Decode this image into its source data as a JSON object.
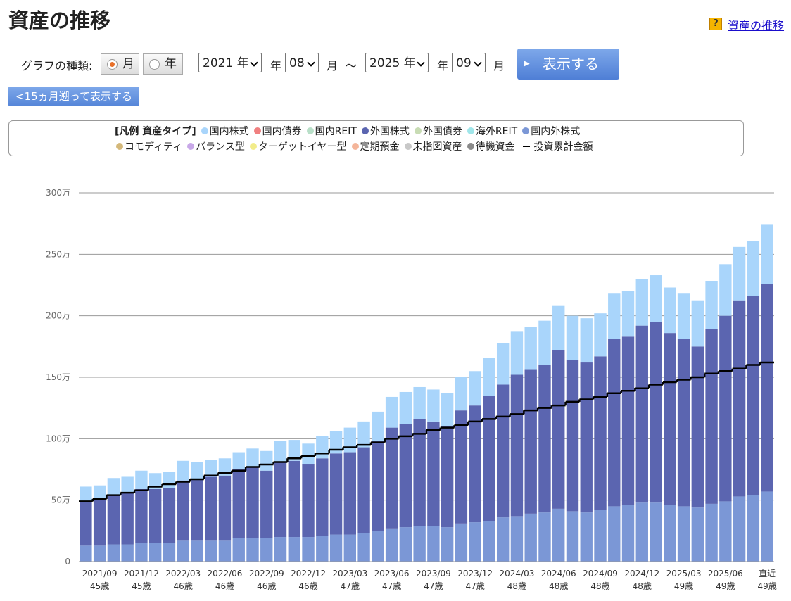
{
  "header": {
    "title": "資産の推移",
    "help_link": "資産の推移"
  },
  "controls": {
    "graph_type_label": "グラフの種類:",
    "radio_month": "月",
    "radio_year": "年",
    "from_year": "2021 年",
    "year_unit_1": "年",
    "from_month": "08",
    "month_unit_1": "月",
    "tilde": "～",
    "to_year": "2025 年",
    "year_unit_2": "年",
    "to_month": "09",
    "month_unit_2": "月",
    "show_button": "表示する",
    "back_button": "<15ヵ月遡って表示する"
  },
  "chart_data": {
    "type": "bar",
    "stacked": true,
    "legend_title": "[凡例 資産タイプ]",
    "categories": [
      null,
      "2021/09",
      null,
      null,
      "2021/12",
      null,
      null,
      "2022/03",
      null,
      null,
      "2022/06",
      null,
      null,
      "2022/09",
      null,
      null,
      "2022/12",
      null,
      null,
      "2023/03",
      null,
      null,
      "2023/06",
      null,
      null,
      "2023/09",
      null,
      null,
      "2023/12",
      null,
      null,
      "2024/03",
      null,
      null,
      "2024/06",
      null,
      null,
      "2024/09",
      null,
      null,
      "2024/12",
      null,
      null,
      "2025/03",
      null,
      null,
      "2025/06",
      null,
      null,
      "直近"
    ],
    "ages": [
      null,
      "45歳",
      null,
      null,
      "45歳",
      null,
      null,
      "46歳",
      null,
      null,
      "46歳",
      null,
      null,
      "46歳",
      null,
      null,
      "46歳",
      null,
      null,
      "47歳",
      null,
      null,
      "47歳",
      null,
      null,
      "47歳",
      null,
      null,
      "47歳",
      null,
      null,
      "48歳",
      null,
      null,
      "48歳",
      null,
      null,
      "48歳",
      null,
      null,
      "48歳",
      null,
      null,
      "49歳",
      null,
      null,
      "49歳",
      null,
      null,
      "49歳"
    ],
    "ylim": [
      0,
      300
    ],
    "yticks": [
      0,
      {
        "value": 50,
        "label": "50万"
      },
      {
        "value": 100,
        "label": "100万"
      },
      {
        "value": 150,
        "label": "150万"
      },
      {
        "value": 200,
        "label": "200万"
      },
      {
        "value": 250,
        "label": "250万"
      },
      {
        "value": 300,
        "label": "300万"
      }
    ],
    "grid": true,
    "series": [
      {
        "name": "国内株式",
        "color": "#a9d5fb",
        "values": [
          12,
          11,
          14,
          13,
          15,
          13,
          13,
          16,
          14,
          14,
          14,
          14,
          15,
          16,
          17,
          17,
          17,
          18,
          18,
          20,
          21,
          24,
          25,
          26,
          26,
          26,
          27,
          27,
          28,
          31,
          34,
          35,
          35,
          36,
          36,
          36,
          36,
          35,
          37,
          37,
          38,
          38,
          37,
          37,
          37,
          39,
          42,
          44,
          45,
          48
        ]
      },
      {
        "name": "国内債券",
        "color": "#f08080",
        "values": [
          0,
          0,
          0,
          0,
          0,
          0,
          0,
          0,
          0,
          0,
          0,
          0,
          0,
          0,
          0,
          0,
          0,
          0,
          0,
          0,
          0,
          0,
          0,
          0,
          0,
          0,
          0,
          0,
          0,
          0,
          0,
          0,
          0,
          0,
          0,
          0,
          0,
          0,
          0,
          0,
          0,
          0,
          0,
          0,
          0,
          0,
          0,
          0,
          0,
          0
        ]
      },
      {
        "name": "国内REIT",
        "color": "#b8dfc8",
        "values": [
          0,
          0,
          0,
          0,
          0,
          0,
          0,
          0,
          0,
          0,
          0,
          0,
          0,
          0,
          0,
          0,
          0,
          0,
          0,
          0,
          0,
          0,
          0,
          0,
          0,
          0,
          0,
          0,
          0,
          0,
          0,
          0,
          0,
          0,
          0,
          0,
          0,
          0,
          0,
          0,
          0,
          0,
          0,
          0,
          0,
          0,
          0,
          0,
          0,
          0
        ]
      },
      {
        "name": "外国株式",
        "color": "#5b65b0",
        "values": [
          36,
          38,
          40,
          42,
          44,
          44,
          45,
          49,
          50,
          52,
          53,
          56,
          58,
          55,
          61,
          62,
          59,
          63,
          66,
          67,
          70,
          73,
          82,
          84,
          87,
          85,
          82,
          92,
          95,
          102,
          108,
          115,
          117,
          120,
          129,
          123,
          122,
          125,
          136,
          137,
          144,
          147,
          140,
          136,
          131,
          142,
          151,
          159,
          162,
          169
        ]
      },
      {
        "name": "外国債券",
        "color": "#c8dcb4",
        "values": [
          0,
          0,
          0,
          0,
          0,
          0,
          0,
          0,
          0,
          0,
          0,
          0,
          0,
          0,
          0,
          0,
          0,
          0,
          0,
          0,
          0,
          0,
          0,
          0,
          0,
          0,
          0,
          0,
          0,
          0,
          0,
          0,
          0,
          0,
          0,
          0,
          0,
          0,
          0,
          0,
          0,
          0,
          0,
          0,
          0,
          0,
          0,
          0,
          0,
          0
        ]
      },
      {
        "name": "海外REIT",
        "color": "#a0e6ea",
        "values": [
          0,
          0,
          0,
          0,
          0,
          0,
          0,
          0,
          0,
          0,
          0,
          0,
          0,
          0,
          0,
          0,
          0,
          0,
          0,
          0,
          0,
          0,
          0,
          0,
          0,
          0,
          0,
          0,
          0,
          0,
          0,
          0,
          0,
          0,
          0,
          0,
          0,
          0,
          0,
          0,
          0,
          0,
          0,
          0,
          0,
          0,
          0,
          0,
          0,
          0
        ]
      },
      {
        "name": "国内外株式",
        "color": "#7b97d6",
        "values": [
          13,
          13,
          14,
          14,
          15,
          15,
          15,
          17,
          17,
          17,
          17,
          19,
          19,
          19,
          20,
          20,
          20,
          21,
          22,
          22,
          23,
          25,
          27,
          28,
          29,
          29,
          28,
          31,
          32,
          33,
          36,
          37,
          39,
          40,
          43,
          41,
          40,
          42,
          45,
          46,
          48,
          48,
          46,
          45,
          44,
          47,
          49,
          53,
          54,
          57
        ]
      },
      {
        "name": "コモディティ",
        "color": "#d4b87a",
        "values": [
          0,
          0,
          0,
          0,
          0,
          0,
          0,
          0,
          0,
          0,
          0,
          0,
          0,
          0,
          0,
          0,
          0,
          0,
          0,
          0,
          0,
          0,
          0,
          0,
          0,
          0,
          0,
          0,
          0,
          0,
          0,
          0,
          0,
          0,
          0,
          0,
          0,
          0,
          0,
          0,
          0,
          0,
          0,
          0,
          0,
          0,
          0,
          0,
          0,
          0
        ]
      },
      {
        "name": "バランス型",
        "color": "#c8a8e8",
        "values": [
          0,
          0,
          0,
          0,
          0,
          0,
          0,
          0,
          0,
          0,
          0,
          0,
          0,
          0,
          0,
          0,
          0,
          0,
          0,
          0,
          0,
          0,
          0,
          0,
          0,
          0,
          0,
          0,
          0,
          0,
          0,
          0,
          0,
          0,
          0,
          0,
          0,
          0,
          0,
          0,
          0,
          0,
          0,
          0,
          0,
          0,
          0,
          0,
          0,
          0
        ]
      },
      {
        "name": "ターゲットイヤー型",
        "color": "#f2ec8a",
        "values": [
          0,
          0,
          0,
          0,
          0,
          0,
          0,
          0,
          0,
          0,
          0,
          0,
          0,
          0,
          0,
          0,
          0,
          0,
          0,
          0,
          0,
          0,
          0,
          0,
          0,
          0,
          0,
          0,
          0,
          0,
          0,
          0,
          0,
          0,
          0,
          0,
          0,
          0,
          0,
          0,
          0,
          0,
          0,
          0,
          0,
          0,
          0,
          0,
          0,
          0
        ]
      },
      {
        "name": "定期預金",
        "color": "#f4b59a",
        "values": [
          0,
          0,
          0,
          0,
          0,
          0,
          0,
          0,
          0,
          0,
          0,
          0,
          0,
          0,
          0,
          0,
          0,
          0,
          0,
          0,
          0,
          0,
          0,
          0,
          0,
          0,
          0,
          0,
          0,
          0,
          0,
          0,
          0,
          0,
          0,
          0,
          0,
          0,
          0,
          0,
          0,
          0,
          0,
          0,
          0,
          0,
          0,
          0,
          0,
          0
        ]
      },
      {
        "name": "未指図資産",
        "color": "#c8c8c8",
        "values": [
          0,
          0,
          0,
          0,
          0,
          0,
          0,
          0,
          0,
          0,
          0,
          0,
          0,
          0,
          0,
          0,
          0,
          0,
          0,
          0,
          0,
          0,
          0,
          0,
          0,
          0,
          0,
          0,
          0,
          0,
          0,
          0,
          0,
          0,
          0,
          0,
          0,
          0,
          0,
          0,
          0,
          0,
          0,
          0,
          0,
          0,
          0,
          0,
          0,
          0
        ]
      },
      {
        "name": "待機資金",
        "color": "#8a8a8a",
        "values": [
          0,
          0,
          0,
          0,
          0,
          0,
          0,
          0,
          0,
          0,
          0,
          0,
          0,
          0,
          0,
          0,
          0,
          0,
          0,
          0,
          0,
          0,
          0,
          0,
          0,
          0,
          0,
          0,
          0,
          0,
          0,
          0,
          0,
          0,
          0,
          0,
          0,
          0,
          0,
          0,
          0,
          0,
          0,
          0,
          0,
          0,
          0,
          0,
          0,
          0
        ]
      },
      {
        "name": "投資累計金額",
        "color": "#000000",
        "type": "line",
        "values": [
          49,
          51,
          54,
          56,
          58,
          61,
          63,
          65,
          67,
          70,
          72,
          74,
          77,
          79,
          81,
          84,
          86,
          88,
          91,
          93,
          95,
          97,
          100,
          102,
          104,
          107,
          109,
          111,
          114,
          116,
          118,
          120,
          123,
          125,
          127,
          130,
          132,
          134,
          137,
          139,
          141,
          144,
          146,
          148,
          150,
          153,
          155,
          157,
          160,
          162
        ]
      }
    ]
  }
}
